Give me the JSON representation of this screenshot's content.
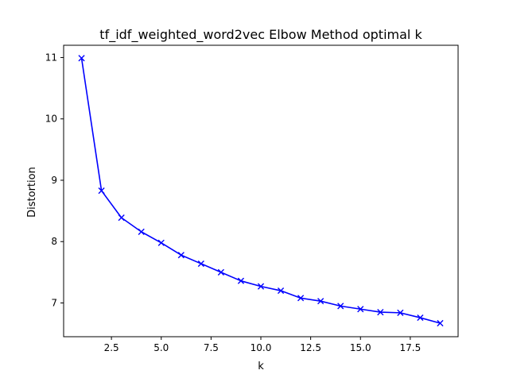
{
  "chart_data": {
    "type": "line",
    "title": "tf_idf_weighted_word2vec Elbow Method optimal k",
    "xlabel": "k",
    "ylabel": "Distortion",
    "xlim": [
      0.1,
      19.9
    ],
    "ylim": [
      6.45,
      11.2
    ],
    "xticks": [
      2.5,
      5.0,
      7.5,
      10.0,
      12.5,
      15.0,
      17.5
    ],
    "xtick_labels": [
      "2.5",
      "5.0",
      "7.5",
      "10.0",
      "12.5",
      "15.0",
      "17.5"
    ],
    "yticks": [
      7,
      8,
      9,
      10,
      11
    ],
    "ytick_labels": [
      "7",
      "8",
      "9",
      "10",
      "11"
    ],
    "grid": false,
    "marker": "x",
    "color": "#0000ff",
    "series": [
      {
        "x": [
          1,
          2,
          3,
          4,
          5,
          6,
          7,
          8,
          9,
          10,
          11,
          12,
          13,
          14,
          15,
          16,
          17,
          18,
          19
        ],
        "y": [
          10.99,
          8.83,
          8.39,
          8.16,
          7.98,
          7.78,
          7.64,
          7.5,
          7.36,
          7.27,
          7.2,
          7.08,
          7.03,
          6.95,
          6.9,
          6.85,
          6.84,
          6.76,
          6.67
        ]
      }
    ]
  }
}
